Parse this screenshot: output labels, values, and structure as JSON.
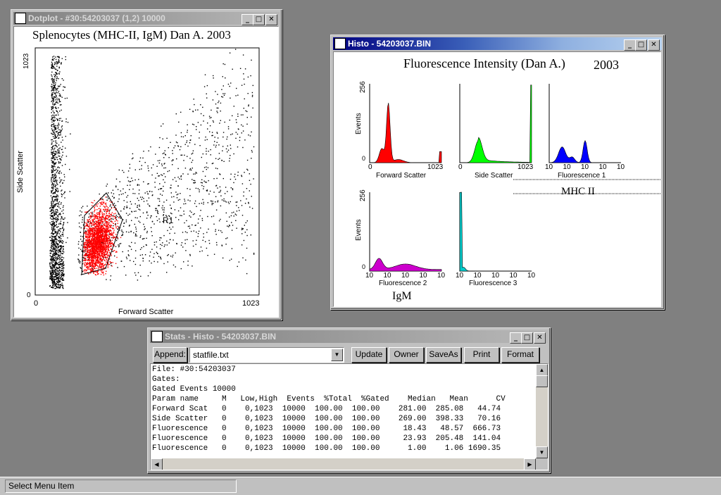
{
  "dotplot": {
    "title": "Dotplot - #30:54203037 (1,2) 10000",
    "plot_title": "Splenocytes (MHC-II, IgM) Dan A. 2003",
    "xlabel": "Forward Scatter",
    "ylabel": "Side Scatter",
    "x_min": "0",
    "x_max": "1023",
    "y_min": "0",
    "y_max": "1023",
    "gate_label": "R1",
    "gate_color": "#ff0000"
  },
  "histo": {
    "title": "Histo - 54203037.BIN",
    "plot_title": "Fluorescence Intensity (Dan A.)",
    "plot_year": "2003",
    "y_max": "256",
    "y_min": "0",
    "ylabel": "Events",
    "annot_mhc": "MHC II",
    "annot_igm": "IgM",
    "panels": [
      {
        "name": "Forward Scatter",
        "color": "#ff0000",
        "ticks": [
          "0",
          "1023"
        ]
      },
      {
        "name": "Side Scatter",
        "color": "#00ff00",
        "ticks": [
          "0",
          "1023"
        ]
      },
      {
        "name": "Fluorescence 1",
        "color": "#0000ff",
        "ticks": [
          "10",
          "10",
          "10",
          "10",
          "10"
        ]
      },
      {
        "name": "Fluorescence 2",
        "color": "#cc00cc",
        "ticks": [
          "10",
          "10",
          "10",
          "10",
          "10"
        ]
      },
      {
        "name": "Fluorescence 3",
        "color": "#00cccc",
        "ticks": [
          "10",
          "10",
          "10",
          "10",
          "10"
        ]
      }
    ]
  },
  "stats": {
    "title": "Stats - Histo - 54203037.BIN",
    "append_label": "Append:",
    "file_value": "statfile.txt",
    "update_label": "Update",
    "owner_label": "Owner",
    "saveas_label": "SaveAs",
    "print_label": "Print",
    "format_label": "Format",
    "lines": [
      "File: #30:54203037",
      "Gates:",
      "Gated Events 10000",
      "Param name     M   Low,High  Events  %Total  %Gated    Median   Mean      CV",
      "Forward Scat   0    0,1023  10000  100.00  100.00    281.00  285.08   44.74",
      "Side Scatter   0    0,1023  10000  100.00  100.00    269.00  398.33   70.16",
      "Fluorescence   0    0,1023  10000  100.00  100.00     18.43   48.57  666.73",
      "Fluorescence   0    0,1023  10000  100.00  100.00     23.93  205.48  141.04",
      "Fluorescence   0    0,1023  10000  100.00  100.00      1.00    1.06 1690.35"
    ]
  },
  "statusbar": {
    "text": "Select Menu Item"
  }
}
